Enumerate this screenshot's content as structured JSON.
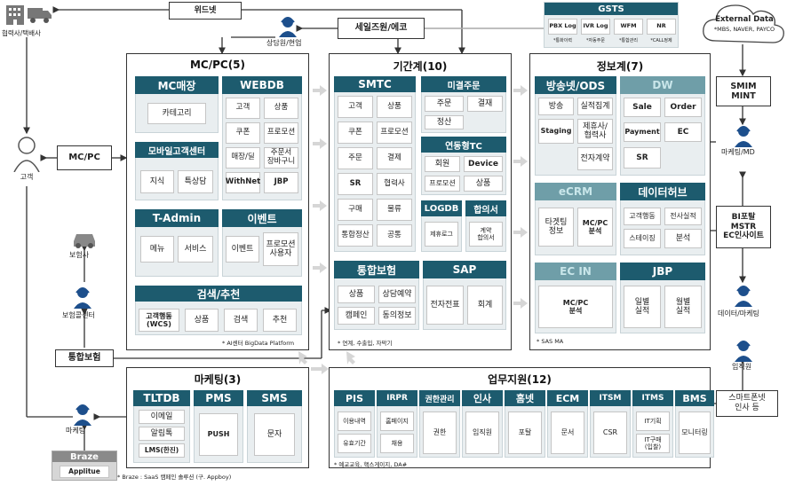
{
  "top": {
    "partners": "협력사/택배사",
    "widnet": "위드넷",
    "counselor": "상담원/현업",
    "seiljoin": "세일즈원/에코",
    "gsts": {
      "title": "GSTS",
      "items": [
        {
          "label": "PBX Log",
          "sub": "*통화이력"
        },
        {
          "label": "IVR Log",
          "sub": "*자동주문"
        },
        {
          "label": "WFM",
          "sub": "*통합관리"
        },
        {
          "label": "NR",
          "sub": "*CALL정제"
        }
      ]
    },
    "external": {
      "title": "External Data",
      "sub": "*MBS, NAVER, PAYCO"
    }
  },
  "left": {
    "customer": "고객",
    "mcpc": "MC/PC",
    "insurer": "보험사",
    "insurance_callcenter": "보험콜센터",
    "integrated_insurance": "통합보험",
    "marketing": "마케팅",
    "braze": "Braze",
    "applitue": "Applitue",
    "braze_note": "* Braze : SaaS 캠페인 솔루션 (구. Appboy)"
  },
  "mcpc_group": {
    "title": "MC/PC(5)",
    "mc_store": {
      "title": "MC매장",
      "items": [
        "카테고리"
      ]
    },
    "webdb": {
      "title": "WEBDB",
      "items": [
        "고객",
        "상품",
        "쿠폰",
        "프로모션",
        "매장/딜",
        "주문서\n장바구니",
        "WithNet",
        "JBP"
      ]
    },
    "mobile_cs": {
      "title": "모바일고객센터",
      "items": [
        "지식",
        "특상담"
      ]
    },
    "tadmin": {
      "title": "T-Admin",
      "items": [
        "메뉴",
        "서비스"
      ]
    },
    "event": {
      "title": "이벤트",
      "items": [
        "이벤트",
        "프로모션\n사용자"
      ]
    },
    "search": {
      "title": "검색/추천",
      "items": [
        "고객행동\n(WCS)",
        "상품",
        "검색",
        "추천"
      ],
      "note": "* AI센터 BigData Platform"
    }
  },
  "core_group": {
    "title": "기간계(10)",
    "smtc": {
      "title": "SMTC",
      "items": [
        "고객",
        "상품",
        "쿠폰",
        "프로모션",
        "주문",
        "결제",
        "SR",
        "협력사",
        "구매",
        "물류",
        "통합정산",
        "공통"
      ]
    },
    "linked_order": {
      "title": "미결주문",
      "items": [
        "주문",
        "결재",
        "정산"
      ]
    },
    "linked_tc": {
      "title": "연동형TC",
      "items": [
        "회원",
        "Device",
        "프로모션",
        "상품"
      ]
    },
    "logdb": {
      "title": "LOGDB",
      "items": [
        "제휴로그"
      ]
    },
    "contract": {
      "title": "합의서",
      "items": [
        "계약\n합의서"
      ]
    },
    "insurance": {
      "title": "통합보험",
      "items": [
        "상품",
        "상담예약",
        "캠페인",
        "동의정보"
      ]
    },
    "sap": {
      "title": "SAP",
      "items": [
        "전자전표",
        "회계"
      ]
    },
    "note": "* 연계, 수출입, 자막기"
  },
  "info_group": {
    "title": "정보계(7)",
    "broadcast": {
      "title": "방송넷/ODS",
      "items": [
        "방송",
        "실적집계",
        "Staging",
        "제휴사/\n협력사",
        "전자계약"
      ]
    },
    "dw": {
      "title": "DW",
      "items": [
        "Sale",
        "Order",
        "Payment",
        "EC",
        "SR"
      ]
    },
    "ecrm": {
      "title": "eCRM",
      "items": [
        "타겟팅\n정보",
        "MC/PC\n분석"
      ]
    },
    "datahub": {
      "title": "데이터허브",
      "items": [
        "고객행동",
        "전사실적",
        "스테이징",
        "분석"
      ]
    },
    "ecin": {
      "title": "EC IN",
      "items": [
        "MC/PC\n분석"
      ]
    },
    "jbp": {
      "title": "JBP",
      "items": [
        "일별\n실적",
        "월별\n실적"
      ]
    },
    "note": "* SAS MA"
  },
  "marketing_group": {
    "title": "마케팅(3)",
    "tltdb": {
      "title": "TLTDB",
      "items": [
        "이메일",
        "알림톡",
        "LMS(한진)"
      ]
    },
    "pms": {
      "title": "PMS",
      "items": [
        "PUSH"
      ]
    },
    "sms": {
      "title": "SMS",
      "items": [
        "문자"
      ]
    }
  },
  "biz_group": {
    "title": "업무지원(12)",
    "items": [
      {
        "title": "PIS",
        "items": [
          "이용내역",
          "유효기간"
        ]
      },
      {
        "title": "IRPR",
        "items": [
          "홈페이지",
          "채용"
        ]
      },
      {
        "title": "권한관리",
        "items": [
          "권한"
        ]
      },
      {
        "title": "인사",
        "items": [
          "임직원"
        ]
      },
      {
        "title": "홈넷",
        "items": [
          "포탈"
        ]
      },
      {
        "title": "ECM",
        "items": [
          "문서"
        ]
      },
      {
        "title": "ITSM",
        "items": [
          "CSR"
        ]
      },
      {
        "title": "ITMS",
        "items": [
          "IT기획",
          "IT구매\n(입찰)"
        ]
      },
      {
        "title": "BMS",
        "items": [
          "모니터링"
        ]
      }
    ],
    "note": "* 예교교육, 핵스게이지, DA#"
  },
  "right": {
    "smim": "SMIM\nMINT",
    "marketing_md": "마케팅/MD",
    "bi": "BI포탈\nMSTR\nEC인사이트",
    "data_marketing": "데이터/마케팅",
    "staff": "임직원",
    "smartphone_hr": "스마트폰넷\n인사 등"
  }
}
